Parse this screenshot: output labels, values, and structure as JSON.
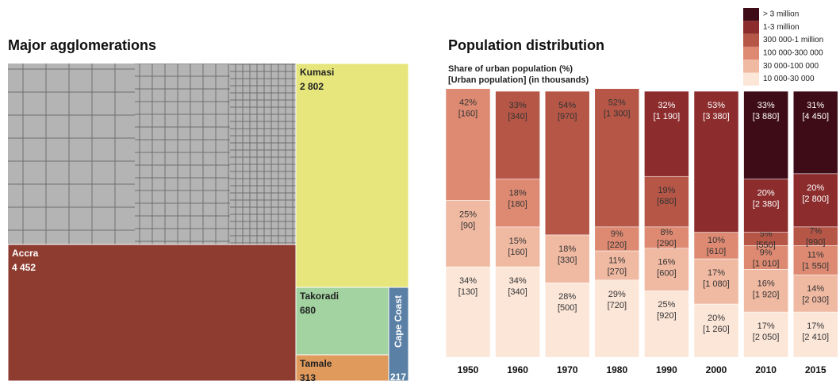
{
  "chart_data": [
    {
      "type": "treemap",
      "title": "Major agglomerations",
      "labels": [
        "Accra",
        "Kumasi",
        "Takoradi",
        "Tamale",
        "Cape Coast"
      ],
      "values": [
        4452,
        2802,
        680,
        313,
        217
      ],
      "value_labels": [
        "4 452",
        "2 802",
        "680",
        "313",
        "217"
      ],
      "colors": [
        "#8e3b30",
        "#e6e67c",
        "#a2d3a0",
        "#e09a5c",
        "#5b80a6"
      ]
    },
    {
      "type": "stacked_bar",
      "title": "Population distribution",
      "subtitle": [
        "Share of urban population (%)",
        "[Urban population] (in thousands)"
      ],
      "categories": [
        "1950",
        "1960",
        "1970",
        "1980",
        "1990",
        "2000",
        "2010",
        "2015"
      ],
      "series": [
        {
          "name": "> 3 million",
          "color": "#3e0c16",
          "values": [
            null,
            null,
            null,
            null,
            null,
            null,
            33,
            31
          ],
          "value_labels": [
            null,
            null,
            null,
            null,
            null,
            null,
            "33%",
            "31%"
          ],
          "populations": [
            null,
            null,
            null,
            null,
            null,
            null,
            3880,
            4450
          ],
          "population_labels": [
            null,
            null,
            null,
            null,
            null,
            null,
            "[3 880]",
            "[4 450]"
          ]
        },
        {
          "name": "1-3 million",
          "color": "#8c2c2d",
          "values": [
            null,
            null,
            null,
            null,
            32,
            53,
            20,
            20
          ],
          "value_labels": [
            null,
            null,
            null,
            null,
            "32%",
            "53%",
            "20%",
            "20%"
          ],
          "populations": [
            null,
            null,
            null,
            null,
            1190,
            3380,
            2380,
            2800
          ],
          "population_labels": [
            null,
            null,
            null,
            null,
            "[1 190]",
            "[3 380]",
            "[2 380]",
            "[2 800]"
          ]
        },
        {
          "name": "300 000-1 million",
          "color": "#b65646",
          "values": [
            null,
            33,
            54,
            52,
            19,
            null,
            5,
            7
          ],
          "value_labels": [
            null,
            "33%",
            "54%",
            "52%",
            "19%",
            null,
            "5%",
            "7%"
          ],
          "populations": [
            null,
            340,
            970,
            1300,
            680,
            null,
            550,
            990
          ],
          "population_labels": [
            null,
            "[340]",
            "[970]",
            "[1 300]",
            "[680]",
            null,
            "[550]",
            "[990]"
          ]
        },
        {
          "name": "100 000-300 000",
          "color": "#de8a72",
          "values": [
            42,
            18,
            null,
            9,
            8,
            10,
            9,
            11
          ],
          "value_labels": [
            "42%",
            "18%",
            null,
            "9%",
            "8%",
            "10%",
            "9%",
            "11%"
          ],
          "populations": [
            160,
            180,
            null,
            220,
            290,
            610,
            1010,
            1550
          ],
          "population_labels": [
            "[160]",
            "[180]",
            null,
            "[220]",
            "[290]",
            "[610]",
            "[1 010]",
            "[1 550]"
          ]
        },
        {
          "name": "30 000-100 000",
          "color": "#f0b9a2",
          "values": [
            25,
            15,
            18,
            11,
            16,
            17,
            16,
            14
          ],
          "value_labels": [
            "25%",
            "15%",
            "18%",
            "11%",
            "16%",
            "17%",
            "16%",
            "14%"
          ],
          "populations": [
            90,
            160,
            330,
            270,
            600,
            1080,
            1920,
            2030
          ],
          "population_labels": [
            "[90]",
            "[160]",
            "[330]",
            "[270]",
            "[600]",
            "[1 080]",
            "[1 920]",
            "[2 030]"
          ]
        },
        {
          "name": "10 000-30 000",
          "color": "#fce6d8",
          "values": [
            34,
            34,
            28,
            29,
            25,
            20,
            17,
            17
          ],
          "value_labels": [
            "34%",
            "34%",
            "28%",
            "29%",
            "25%",
            "20%",
            "17%",
            "17%"
          ],
          "populations": [
            130,
            340,
            500,
            720,
            920,
            1260,
            2050,
            2410
          ],
          "population_labels": [
            "[130]",
            "[340]",
            "[500]",
            "[720]",
            "[920]",
            "[1 260]",
            "[2 050]",
            "[2 410]"
          ]
        }
      ]
    }
  ]
}
